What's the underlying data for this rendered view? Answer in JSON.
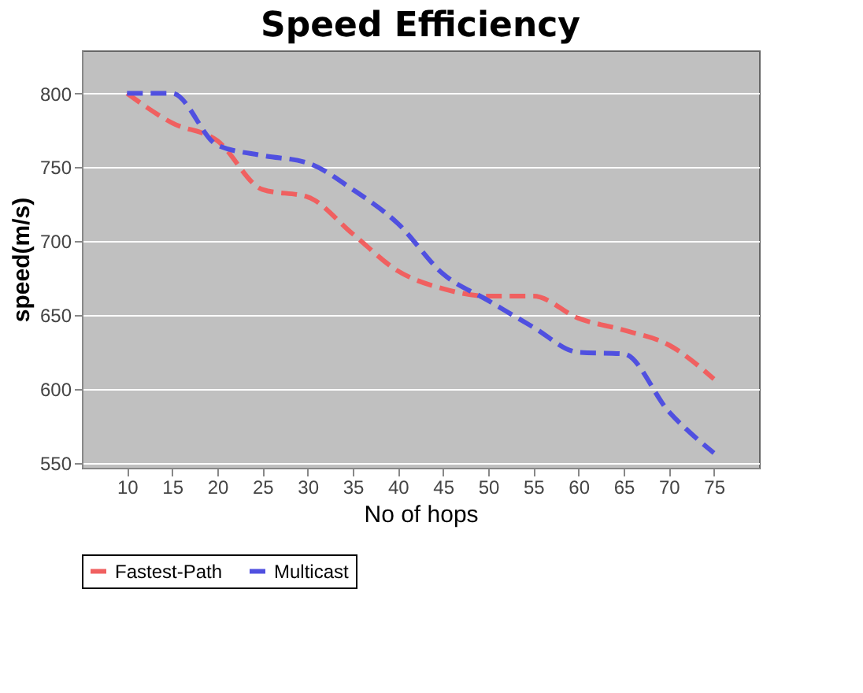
{
  "chart_data": {
    "type": "line",
    "title": "Speed Efficiency",
    "xlabel": "No of hops",
    "ylabel": "speed(m/s)",
    "categories": [
      "10",
      "15",
      "20",
      "25",
      "30",
      "35",
      "40",
      "45",
      "50",
      "55",
      "60",
      "65",
      "70",
      "75"
    ],
    "series": [
      {
        "name": "Fastest-Path",
        "color": "#f06060",
        "values": [
          800,
          780,
          768,
          735,
          730,
          705,
          680,
          668,
          663,
          663,
          648,
          640,
          630,
          607
        ]
      },
      {
        "name": "Multicast",
        "color": "#5050e0",
        "values": [
          800,
          800,
          765,
          758,
          753,
          735,
          712,
          678,
          660,
          642,
          625,
          624,
          585,
          557
        ]
      }
    ],
    "ylim": [
      547,
      829
    ],
    "yticks": [
      550,
      600,
      650,
      700,
      750,
      800
    ],
    "grid": "y",
    "legend": "bottom",
    "marker": "none",
    "line_style": "dashed"
  }
}
